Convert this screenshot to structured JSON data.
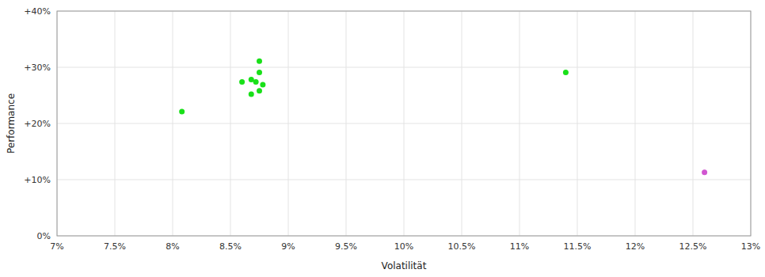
{
  "chart_data": {
    "type": "scatter",
    "xlabel": "Volatilität",
    "ylabel": "Performance",
    "xlim": [
      0.07,
      0.13
    ],
    "ylim": [
      0.0,
      0.4
    ],
    "xticks": [
      {
        "value": 0.07,
        "label": "7%"
      },
      {
        "value": 0.075,
        "label": "7.5%"
      },
      {
        "value": 0.08,
        "label": "8%"
      },
      {
        "value": 0.085,
        "label": "8.5%"
      },
      {
        "value": 0.09,
        "label": "9%"
      },
      {
        "value": 0.095,
        "label": "9.5%"
      },
      {
        "value": 0.1,
        "label": "10%"
      },
      {
        "value": 0.105,
        "label": "10.5%"
      },
      {
        "value": 0.11,
        "label": "11%"
      },
      {
        "value": 0.115,
        "label": "11.5%"
      },
      {
        "value": 0.12,
        "label": "12%"
      },
      {
        "value": 0.125,
        "label": "12.5%"
      },
      {
        "value": 0.13,
        "label": "13%"
      }
    ],
    "yticks": [
      {
        "value": 0.0,
        "label": "0%"
      },
      {
        "value": 0.1,
        "label": "+10%"
      },
      {
        "value": 0.2,
        "label": "+20%"
      },
      {
        "value": 0.3,
        "label": "+30%"
      },
      {
        "value": 0.4,
        "label": "+40%"
      }
    ],
    "grid": true,
    "series": [
      {
        "color": "#00dd00",
        "x": [
          0.0875,
          0.0875,
          0.0868,
          0.0872,
          0.086,
          0.0878,
          0.0875,
          0.0868,
          0.0808,
          0.114
        ],
        "values": [
          0.311,
          0.291,
          0.278,
          0.274,
          0.274,
          0.269,
          0.258,
          0.252,
          0.221,
          0.291
        ]
      },
      {
        "color": "#cc44cc",
        "x": [
          0.126
        ],
        "values": [
          0.113
        ]
      }
    ]
  }
}
